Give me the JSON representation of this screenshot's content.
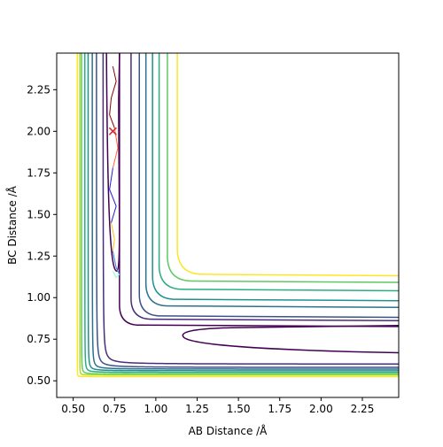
{
  "chart_data": {
    "type": "contour",
    "title": "",
    "xlabel": "AB Distance /Å",
    "ylabel": "BC Distance /Å",
    "xlim": [
      0.4,
      2.47
    ],
    "ylim": [
      0.4,
      2.47
    ],
    "x_ticks": [
      0.5,
      0.75,
      1.0,
      1.25,
      1.5,
      1.75,
      2.0,
      2.25
    ],
    "x_tick_labels": [
      "0.50",
      "0.75",
      "1.00",
      "1.25",
      "1.50",
      "1.75",
      "2.00",
      "2.25"
    ],
    "y_ticks": [
      0.5,
      0.75,
      1.0,
      1.25,
      1.5,
      1.75,
      2.0,
      2.25
    ],
    "y_tick_labels": [
      "0.50",
      "0.75",
      "1.00",
      "1.25",
      "1.50",
      "1.75",
      "2.00",
      "2.25"
    ],
    "grid": false,
    "colormap": "viridis",
    "contour_levels": [
      {
        "level": 1,
        "color": "#440154",
        "corner_x": 0.78,
        "corner_y": 0.78,
        "asym_x": 0.78,
        "asym_y": 0.79,
        "open": true
      },
      {
        "level": 2,
        "color": "#472d7b",
        "corner_x": 0.695,
        "corner_y": 0.695,
        "asym_x": 0.68,
        "asym_y": 0.6
      },
      {
        "level": 3,
        "color": "#3b528b",
        "corner_x": 0.655,
        "corner_y": 0.655,
        "asym_x": 0.64,
        "asym_y": 0.58
      },
      {
        "level": 4,
        "color": "#2c728e",
        "corner_x": 0.625,
        "corner_y": 0.625,
        "asym_x": 0.615,
        "asym_y": 0.57
      },
      {
        "level": 5,
        "color": "#21918c",
        "corner_x": 0.6,
        "corner_y": 0.6,
        "asym_x": 0.59,
        "asym_y": 0.56
      },
      {
        "level": 6,
        "color": "#28ae80",
        "corner_x": 0.58,
        "corner_y": 0.58,
        "asym_x": 0.57,
        "asym_y": 0.55
      },
      {
        "level": 7,
        "color": "#5ec962",
        "corner_x": 0.56,
        "corner_y": 0.56,
        "asym_x": 0.55,
        "asym_y": 0.54
      },
      {
        "level": 8,
        "color": "#addc30",
        "corner_x": 0.545,
        "corner_y": 0.545,
        "asym_x": 0.54,
        "asym_y": 0.535
      },
      {
        "level": 9,
        "color": "#fde725",
        "corner_x": 0.53,
        "corner_y": 0.53,
        "asym_x": 0.525,
        "asym_y": 0.525
      }
    ],
    "outer_contours": [
      {
        "color": "#440154",
        "x_far": 0.78,
        "y_far": 0.835
      },
      {
        "color": "#472d7b",
        "x_far": 0.85,
        "y_far": 0.87
      },
      {
        "color": "#3b528b",
        "x_far": 0.9,
        "y_far": 0.89
      },
      {
        "color": "#2c728e",
        "x_far": 0.94,
        "y_far": 0.95
      },
      {
        "color": "#21918c",
        "x_far": 0.98,
        "y_far": 0.99
      },
      {
        "color": "#28ae80",
        "x_far": 1.02,
        "y_far": 1.05
      },
      {
        "color": "#5ec962",
        "x_far": 1.07,
        "y_far": 1.1
      },
      {
        "color": "#fde725",
        "x_far": 1.13,
        "y_far": 1.14
      }
    ],
    "trajectory": {
      "start_marker": {
        "x": 0.74,
        "y": 2.0,
        "color": "#d62728"
      },
      "segments": [
        {
          "color": "#8b0000",
          "points": [
            [
              0.74,
              2.39
            ],
            [
              0.76,
              2.3
            ],
            [
              0.73,
              2.2
            ],
            [
              0.72,
              2.1
            ],
            [
              0.75,
              2.02
            ]
          ]
        },
        {
          "color": "#ff6a2a",
          "points": [
            [
              0.75,
              2.02
            ],
            [
              0.77,
              1.9
            ],
            [
              0.74,
              1.78
            ]
          ]
        },
        {
          "color": "#1f1fcf",
          "points": [
            [
              0.74,
              1.78
            ],
            [
              0.72,
              1.65
            ],
            [
              0.76,
              1.55
            ],
            [
              0.73,
              1.45
            ]
          ]
        },
        {
          "color": "#f5c518",
          "points": [
            [
              0.73,
              1.45
            ],
            [
              0.75,
              1.35
            ],
            [
              0.74,
              1.28
            ]
          ]
        },
        {
          "color": "#3a7bd5",
          "points": [
            [
              0.74,
              1.28
            ],
            [
              0.76,
              1.18
            ],
            [
              0.78,
              1.14
            ]
          ]
        },
        {
          "color": "#7fffd4",
          "points": [
            [
              0.78,
              1.14
            ],
            [
              0.76,
              1.12
            ],
            [
              0.74,
              1.16
            ]
          ]
        }
      ]
    }
  }
}
